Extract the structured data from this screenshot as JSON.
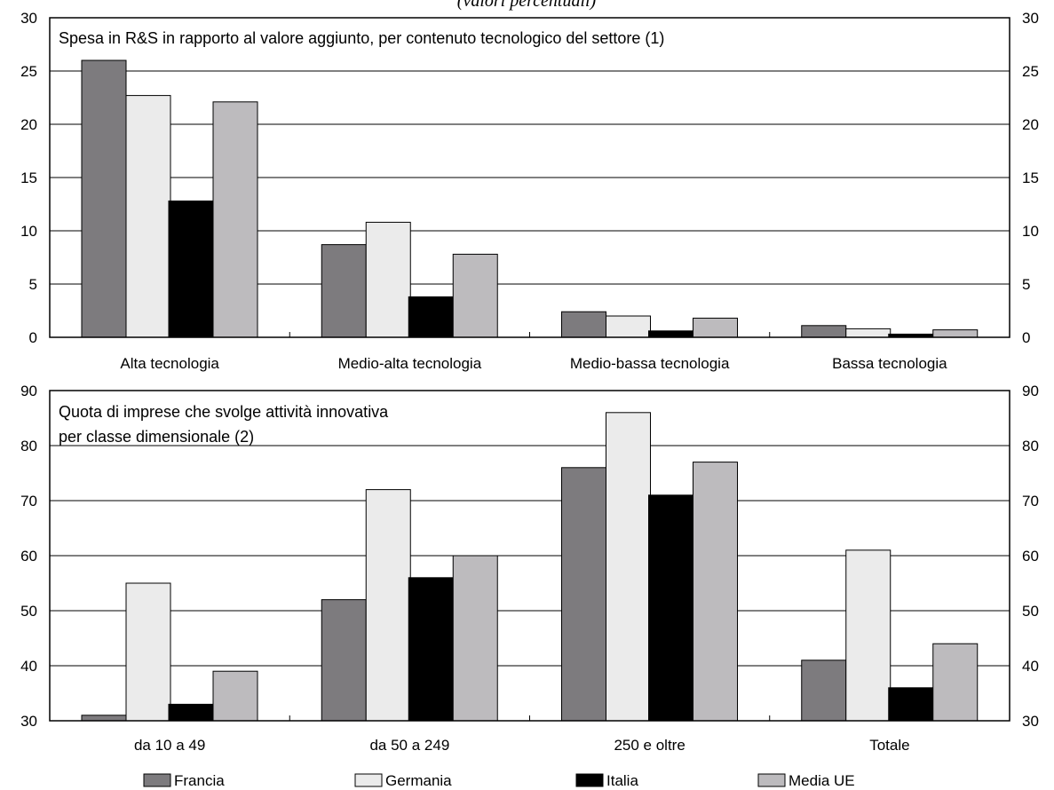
{
  "header_fragment": "(valori percentuali)",
  "chart_data": [
    {
      "type": "bar",
      "title": "Spesa in R&S in rapporto al valore aggiunto, per contenuto tecnologico del settore (1)",
      "categories": [
        "Alta tecnologia",
        "Medio-alta tecnologia",
        "Medio-bassa tecnologia",
        "Bassa tecnologia"
      ],
      "ylim": [
        0,
        30
      ],
      "yticks": [
        "0",
        "5",
        "10",
        "15",
        "20",
        "25",
        "30"
      ],
      "series": [
        {
          "name": "Francia",
          "values": [
            26,
            8.7,
            2.4,
            1.1
          ]
        },
        {
          "name": "Germania",
          "values": [
            22.7,
            10.8,
            2.0,
            0.8
          ]
        },
        {
          "name": "Italia",
          "values": [
            12.8,
            3.8,
            0.6,
            0.3
          ]
        },
        {
          "name": "Media UE",
          "values": [
            22.1,
            7.8,
            1.8,
            0.7
          ]
        }
      ],
      "grid": true
    },
    {
      "type": "bar",
      "title": "Quota di imprese che svolge attività innovativa per classe dimensionale (2)",
      "title_lines": [
        "Quota di imprese che svolge attività innovativa",
        "per classe dimensionale (2)"
      ],
      "categories": [
        "da 10 a 49",
        "da 50 a 249",
        "250 e oltre",
        "Totale"
      ],
      "ylim": [
        30,
        90
      ],
      "yticks": [
        "30",
        "40",
        "50",
        "60",
        "70",
        "80",
        "90"
      ],
      "series": [
        {
          "name": "Francia",
          "values": [
            31,
            52,
            76,
            41
          ]
        },
        {
          "name": "Germania",
          "values": [
            55,
            72,
            86,
            61
          ]
        },
        {
          "name": "Italia",
          "values": [
            33,
            56,
            71,
            36
          ]
        },
        {
          "name": "Media UE",
          "values": [
            39,
            60,
            77,
            44
          ]
        }
      ],
      "grid": true
    }
  ],
  "legend": {
    "placement": "bottom",
    "items": [
      {
        "label": "Francia",
        "color": "#7d7b7e"
      },
      {
        "label": "Germania",
        "color": "#ebebeb"
      },
      {
        "label": "Italia",
        "color": "#000000"
      },
      {
        "label": "Media UE",
        "color": "#bdbbbe"
      }
    ]
  }
}
